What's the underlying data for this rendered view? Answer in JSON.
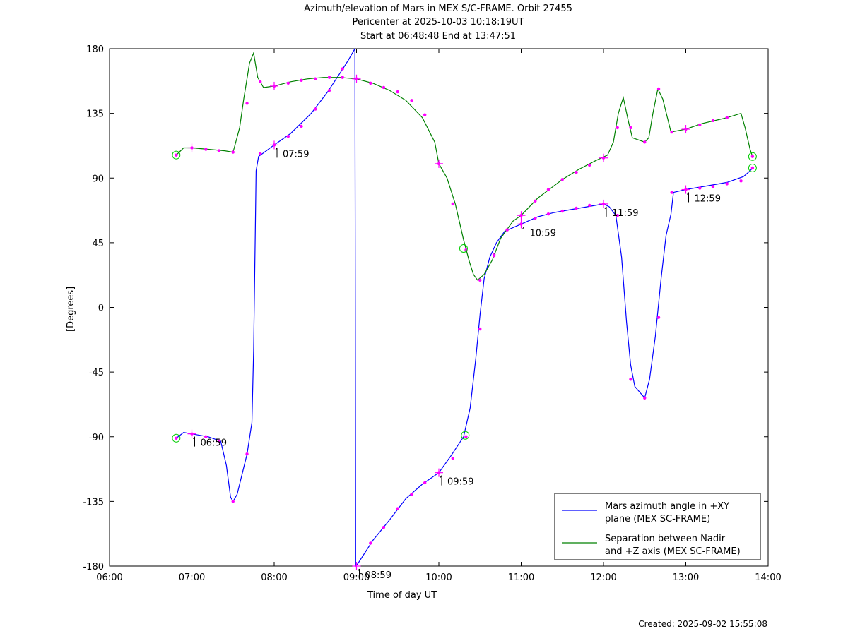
{
  "chart_data": {
    "type": "line",
    "title": "Azimuth/elevation of Mars in MEX S/C-FRAME.  Orbit 27455",
    "subtitle": "Pericenter at 2025-10-03 10:18:19UT",
    "subtitle2": "Start at 06:48:48 End at 13:47:51",
    "xlabel": "Time of day UT",
    "ylabel": "[Degrees]",
    "xlim": [
      6,
      14
    ],
    "ylim": [
      -180,
      180
    ],
    "xticks": [
      6,
      7,
      8,
      9,
      10,
      11,
      12,
      13,
      14
    ],
    "xtick_labels": [
      "06:00",
      "07:00",
      "08:00",
      "09:00",
      "10:00",
      "11:00",
      "12:00",
      "13:00",
      "14:00"
    ],
    "yticks": [
      180,
      135,
      90,
      45,
      0,
      -45,
      -90,
      -135,
      -180
    ],
    "ytick_labels": [
      "180",
      "135",
      "90",
      "45",
      "0",
      "-45",
      "-90",
      "-135",
      "-180"
    ],
    "legend_position": "bottom-right",
    "series": [
      {
        "name": "Mars azimuth angle in +XY plane (MEX SC-FRAME)",
        "legend_line1": "Mars azimuth angle in +XY",
        "legend_line2": "plane (MEX SC-FRAME)",
        "color": "#0000ff",
        "points": [
          [
            6.81,
            -91
          ],
          [
            6.9,
            -87
          ],
          [
            7.0,
            -88
          ],
          [
            7.2,
            -90
          ],
          [
            7.35,
            -93
          ],
          [
            7.42,
            -110
          ],
          [
            7.47,
            -132
          ],
          [
            7.5,
            -135
          ],
          [
            7.55,
            -130
          ],
          [
            7.67,
            -102
          ],
          [
            7.73,
            -80
          ],
          [
            7.75,
            -30
          ],
          [
            7.77,
            50
          ],
          [
            7.78,
            95
          ],
          [
            7.81,
            105
          ],
          [
            8.0,
            113
          ],
          [
            8.2,
            121
          ],
          [
            8.45,
            135
          ],
          [
            8.65,
            150
          ],
          [
            8.8,
            163
          ],
          [
            8.9,
            172
          ],
          [
            8.98,
            180
          ],
          [
            8.985,
            0
          ],
          [
            8.99,
            -180
          ],
          [
            9.02,
            -178
          ],
          [
            9.2,
            -162
          ],
          [
            9.4,
            -148
          ],
          [
            9.6,
            -133
          ],
          [
            9.8,
            -123
          ],
          [
            10.0,
            -115
          ],
          [
            10.15,
            -103
          ],
          [
            10.3,
            -90
          ],
          [
            10.38,
            -70
          ],
          [
            10.45,
            -35
          ],
          [
            10.5,
            -5
          ],
          [
            10.55,
            20
          ],
          [
            10.62,
            35
          ],
          [
            10.7,
            45
          ],
          [
            10.8,
            53
          ],
          [
            11.0,
            58
          ],
          [
            11.2,
            63
          ],
          [
            11.4,
            66
          ],
          [
            11.6,
            68
          ],
          [
            11.8,
            70
          ],
          [
            12.0,
            72
          ],
          [
            12.07,
            70
          ],
          [
            12.15,
            64
          ],
          [
            12.22,
            35
          ],
          [
            12.28,
            -10
          ],
          [
            12.33,
            -40
          ],
          [
            12.38,
            -55
          ],
          [
            12.5,
            -63
          ],
          [
            12.56,
            -50
          ],
          [
            12.63,
            -20
          ],
          [
            12.7,
            20
          ],
          [
            12.76,
            50
          ],
          [
            12.82,
            65
          ],
          [
            12.85,
            80
          ],
          [
            13.0,
            82
          ],
          [
            13.2,
            84
          ],
          [
            13.5,
            87
          ],
          [
            13.7,
            91
          ],
          [
            13.78,
            95
          ],
          [
            13.81,
            97
          ]
        ],
        "markers": [
          [
            6.81,
            -91
          ],
          [
            7.0,
            -88
          ],
          [
            7.17,
            -90
          ],
          [
            7.33,
            -93
          ],
          [
            7.5,
            -135
          ],
          [
            7.67,
            -102
          ],
          [
            7.83,
            107
          ],
          [
            8.0,
            113
          ],
          [
            8.17,
            119
          ],
          [
            8.33,
            126
          ],
          [
            8.5,
            138
          ],
          [
            8.67,
            151
          ],
          [
            8.83,
            166
          ],
          [
            9.17,
            -164
          ],
          [
            9.33,
            -153
          ],
          [
            9.5,
            -140
          ],
          [
            9.67,
            -130
          ],
          [
            9.83,
            -122
          ],
          [
            10.0,
            -115
          ],
          [
            10.17,
            -105
          ],
          [
            10.33,
            -90
          ],
          [
            10.5,
            -15
          ],
          [
            10.67,
            37
          ],
          [
            10.83,
            54
          ],
          [
            11.0,
            58
          ],
          [
            11.17,
            62
          ],
          [
            11.33,
            65
          ],
          [
            11.5,
            67
          ],
          [
            11.67,
            69
          ],
          [
            11.83,
            71
          ],
          [
            12.0,
            72
          ],
          [
            12.17,
            64
          ],
          [
            12.33,
            -50
          ],
          [
            12.5,
            -63
          ],
          [
            12.67,
            -7
          ],
          [
            12.83,
            80
          ],
          [
            13.0,
            82
          ],
          [
            13.17,
            83
          ],
          [
            13.33,
            84
          ],
          [
            13.5,
            86
          ],
          [
            13.67,
            88
          ],
          [
            13.81,
            97
          ]
        ],
        "crosses": [
          [
            7.0,
            -88
          ],
          [
            8.0,
            113
          ],
          [
            9.0,
            -180
          ],
          [
            10.0,
            -115
          ],
          [
            11.0,
            58
          ],
          [
            12.0,
            72
          ],
          [
            13.0,
            82
          ]
        ],
        "circles": [
          [
            6.81,
            -91
          ],
          [
            10.32,
            -89
          ],
          [
            13.81,
            97
          ]
        ]
      },
      {
        "name": "Separation between Nadir and +Z axis (MEX SC-FRAME)",
        "legend_line1": "Separation between Nadir",
        "legend_line2": "and +Z axis (MEX SC-FRAME)",
        "color": "#008000",
        "points": [
          [
            6.81,
            106
          ],
          [
            6.9,
            111
          ],
          [
            7.0,
            111
          ],
          [
            7.2,
            110
          ],
          [
            7.4,
            109
          ],
          [
            7.5,
            108
          ],
          [
            7.58,
            125
          ],
          [
            7.63,
            145
          ],
          [
            7.7,
            170
          ],
          [
            7.75,
            177
          ],
          [
            7.8,
            160
          ],
          [
            7.87,
            153
          ],
          [
            8.0,
            154
          ],
          [
            8.2,
            157
          ],
          [
            8.4,
            159
          ],
          [
            8.6,
            160
          ],
          [
            8.8,
            160
          ],
          [
            9.0,
            159
          ],
          [
            9.2,
            156
          ],
          [
            9.4,
            151
          ],
          [
            9.6,
            144
          ],
          [
            9.8,
            132
          ],
          [
            9.95,
            115
          ],
          [
            10.0,
            100
          ],
          [
            10.1,
            90
          ],
          [
            10.2,
            72
          ],
          [
            10.3,
            47
          ],
          [
            10.37,
            32
          ],
          [
            10.42,
            23
          ],
          [
            10.47,
            19
          ],
          [
            10.55,
            23
          ],
          [
            10.65,
            33
          ],
          [
            10.75,
            48
          ],
          [
            10.9,
            60
          ],
          [
            11.0,
            64
          ],
          [
            11.2,
            76
          ],
          [
            11.5,
            89
          ],
          [
            11.7,
            96
          ],
          [
            11.9,
            102
          ],
          [
            12.05,
            106
          ],
          [
            12.12,
            115
          ],
          [
            12.18,
            135
          ],
          [
            12.24,
            146
          ],
          [
            12.3,
            130
          ],
          [
            12.35,
            118
          ],
          [
            12.5,
            115
          ],
          [
            12.55,
            118
          ],
          [
            12.6,
            135
          ],
          [
            12.66,
            152
          ],
          [
            12.72,
            145
          ],
          [
            12.82,
            122
          ],
          [
            13.0,
            124
          ],
          [
            13.2,
            128
          ],
          [
            13.5,
            132
          ],
          [
            13.67,
            135
          ],
          [
            13.72,
            125
          ],
          [
            13.78,
            110
          ],
          [
            13.81,
            105
          ]
        ],
        "markers": [
          [
            6.81,
            106
          ],
          [
            7.0,
            111
          ],
          [
            7.17,
            110
          ],
          [
            7.33,
            109
          ],
          [
            7.5,
            108
          ],
          [
            7.67,
            142
          ],
          [
            7.83,
            157
          ],
          [
            8.0,
            154
          ],
          [
            8.17,
            156
          ],
          [
            8.33,
            158
          ],
          [
            8.5,
            159
          ],
          [
            8.67,
            160
          ],
          [
            8.83,
            160
          ],
          [
            9.0,
            159
          ],
          [
            9.17,
            156
          ],
          [
            9.33,
            153
          ],
          [
            9.5,
            150
          ],
          [
            9.67,
            144
          ],
          [
            9.83,
            134
          ],
          [
            10.0,
            100
          ],
          [
            10.17,
            72
          ],
          [
            10.33,
            40
          ],
          [
            10.5,
            19
          ],
          [
            10.67,
            36
          ],
          [
            10.83,
            54
          ],
          [
            11.0,
            64
          ],
          [
            11.17,
            74
          ],
          [
            11.33,
            82
          ],
          [
            11.5,
            89
          ],
          [
            11.67,
            94
          ],
          [
            11.83,
            99
          ],
          [
            12.0,
            104
          ],
          [
            12.17,
            125
          ],
          [
            12.33,
            125
          ],
          [
            12.5,
            115
          ],
          [
            12.67,
            152
          ],
          [
            12.83,
            122
          ],
          [
            13.0,
            124
          ],
          [
            13.17,
            127
          ],
          [
            13.33,
            130
          ],
          [
            13.5,
            132
          ],
          [
            13.81,
            105
          ]
        ],
        "crosses": [
          [
            7.0,
            111
          ],
          [
            8.0,
            154
          ],
          [
            9.0,
            159
          ],
          [
            10.0,
            100
          ],
          [
            11.0,
            64
          ],
          [
            12.0,
            104
          ],
          [
            13.0,
            124
          ]
        ],
        "circles": [
          [
            6.81,
            106
          ],
          [
            10.3,
            41
          ],
          [
            13.81,
            105
          ]
        ]
      }
    ],
    "annotations": [
      {
        "text": "06:59",
        "x": 7.0,
        "y": -88
      },
      {
        "text": "07:59",
        "x": 8.0,
        "y": 113
      },
      {
        "text": "08:59",
        "x": 9.0,
        "y": -180
      },
      {
        "text": "09:59",
        "x": 10.0,
        "y": -115
      },
      {
        "text": "10:59",
        "x": 11.0,
        "y": 58
      },
      {
        "text": "11:59",
        "x": 12.0,
        "y": 72
      },
      {
        "text": "12:59",
        "x": 13.0,
        "y": 82
      }
    ]
  },
  "footer": "Created: 2025-09-02 15:55:08"
}
